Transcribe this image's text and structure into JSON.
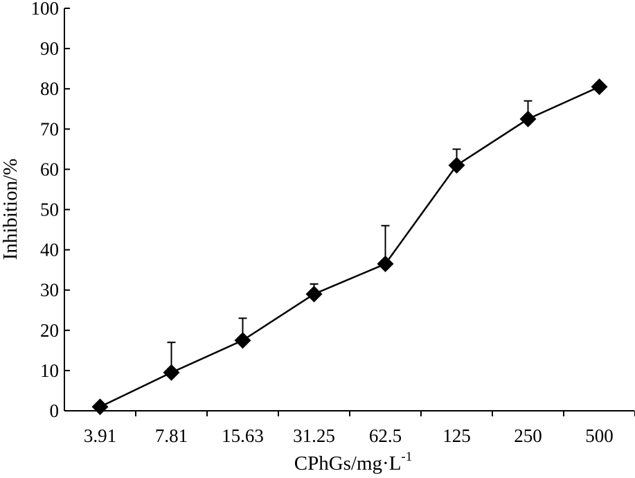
{
  "chart_data": {
    "type": "line",
    "title": "",
    "xlabel": "CPhGs/mg·L",
    "xlabel_superscript": "-1",
    "ylabel": "Inhibition/%",
    "ylim": [
      0,
      100
    ],
    "yticks": [
      0,
      10,
      20,
      30,
      40,
      50,
      60,
      70,
      80,
      90,
      100
    ],
    "categories": [
      "3.91",
      "7.81",
      "15.63",
      "31.25",
      "62.5",
      "125",
      "250",
      "500"
    ],
    "series": [
      {
        "values": [
          1,
          9.5,
          17.5,
          29,
          36.5,
          61,
          72.5,
          80.5
        ],
        "error_upper": [
          0,
          7.5,
          5.5,
          2.5,
          9.5,
          4,
          4.5,
          0
        ],
        "marker": "diamond",
        "color": "#000000"
      }
    ],
    "grid": false,
    "legend": "none"
  }
}
